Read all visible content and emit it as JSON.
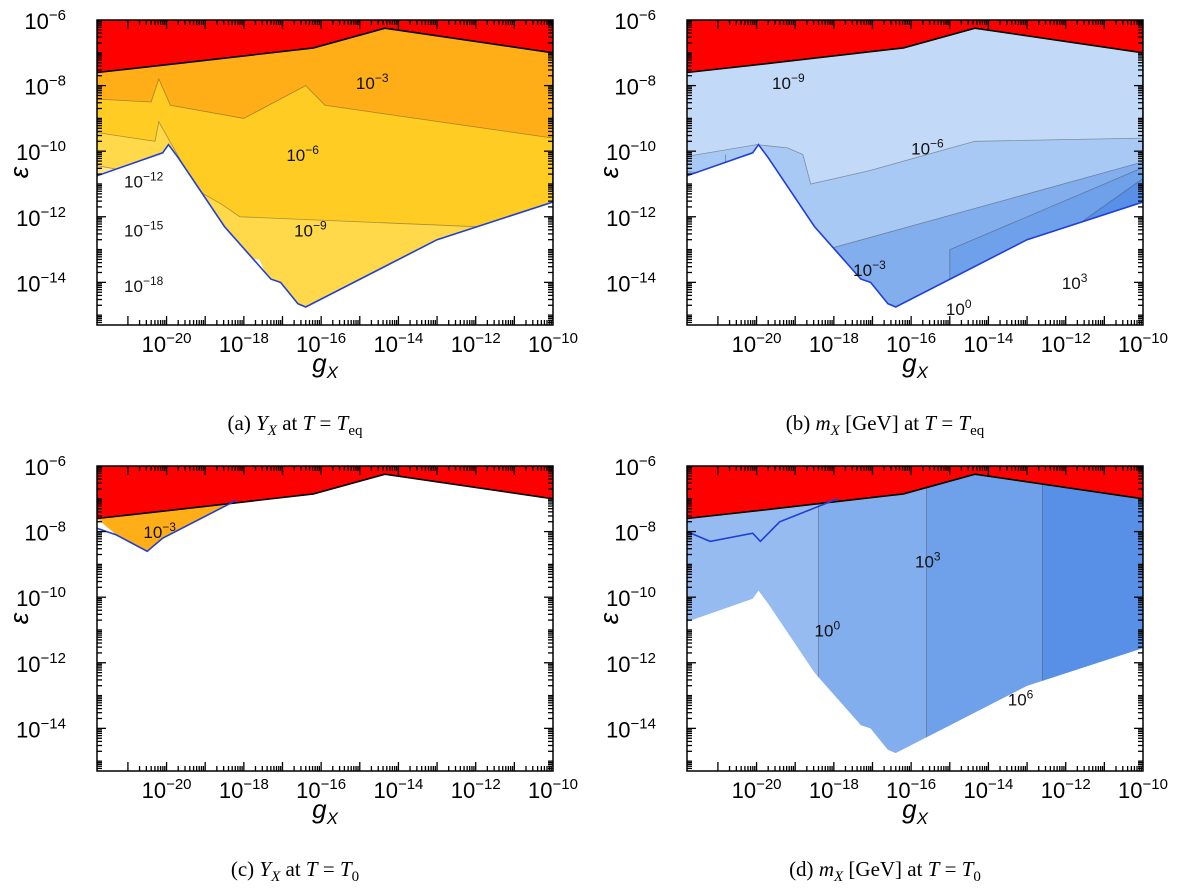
{
  "chart_data": [
    {
      "id": "a",
      "type": "contour",
      "xlabel": "g",
      "xlabel_sub": "X",
      "ylabel": "ε",
      "x_log_range": [
        -21.8,
        -10
      ],
      "y_log_range": [
        -15.3,
        -6
      ],
      "x_ticks": [
        -20,
        -18,
        -16,
        -14,
        -12,
        -10
      ],
      "y_ticks": [
        -6,
        -8,
        -10,
        -12,
        -14
      ],
      "caption": {
        "pre": "(a) ",
        "var": "Y",
        "var_sub": "X",
        "mid": " at ",
        "t": "T",
        "eq": " = ",
        "rhs": "T",
        "rhs_sub": "eq"
      },
      "palette": "orange",
      "contour_labels": [
        {
          "base": "10",
          "exp": "−3",
          "x": -15.1,
          "y": -8.1
        },
        {
          "base": "10",
          "exp": "−6",
          "x": -16.9,
          "y": -10.3
        },
        {
          "base": "10",
          "exp": "−9",
          "x": -16.7,
          "y": -12.6
        },
        {
          "base": "10",
          "exp": "−12",
          "x": -21.1,
          "y": -11.1
        },
        {
          "base": "10",
          "exp": "−15",
          "x": -21.1,
          "y": -12.6
        },
        {
          "base": "10",
          "exp": "−18",
          "x": -21.1,
          "y": -14.3
        }
      ]
    },
    {
      "id": "b",
      "type": "contour",
      "xlabel": "g",
      "xlabel_sub": "X",
      "ylabel": "ε",
      "x_log_range": [
        -21.8,
        -10
      ],
      "y_log_range": [
        -15.3,
        -6
      ],
      "x_ticks": [
        -20,
        -18,
        -16,
        -14,
        -12,
        -10
      ],
      "y_ticks": [
        -6,
        -8,
        -10,
        -12,
        -14
      ],
      "caption": {
        "pre": "(b) ",
        "var": "m",
        "var_sub": "X",
        "mid": " [GeV] at ",
        "t": "T",
        "eq": " = ",
        "rhs": "T",
        "rhs_sub": "eq"
      },
      "palette": "blue",
      "contour_labels": [
        {
          "base": "10",
          "exp": "−9",
          "x": -19.6,
          "y": -8.1
        },
        {
          "base": "10",
          "exp": "−6",
          "x": -16.0,
          "y": -10.1
        },
        {
          "base": "10",
          "exp": "−3",
          "x": -17.5,
          "y": -13.8
        },
        {
          "base": "10",
          "exp": "0",
          "x": -15.1,
          "y": -15.0
        },
        {
          "base": "10",
          "exp": "3",
          "x": -12.1,
          "y": -14.2
        }
      ]
    },
    {
      "id": "c",
      "type": "contour",
      "xlabel": "g",
      "xlabel_sub": "X",
      "ylabel": "ε",
      "x_log_range": [
        -21.8,
        -10
      ],
      "y_log_range": [
        -15.3,
        -6
      ],
      "x_ticks": [
        -20,
        -18,
        -16,
        -14,
        -12,
        -10
      ],
      "y_ticks": [
        -6,
        -8,
        -10,
        -12,
        -14
      ],
      "caption": {
        "pre": "(c) ",
        "var": "Y",
        "var_sub": "X",
        "mid": " at ",
        "t": "T",
        "eq": " = ",
        "rhs": "T",
        "rhs_sub": "0"
      },
      "palette": "orange",
      "contour_labels": [
        {
          "base": "10",
          "exp": "−3",
          "x": -20.6,
          "y": -8.2
        }
      ]
    },
    {
      "id": "d",
      "type": "contour",
      "xlabel": "g",
      "xlabel_sub": "X",
      "ylabel": "ε",
      "x_log_range": [
        -21.8,
        -10
      ],
      "y_log_range": [
        -15.3,
        -6
      ],
      "x_ticks": [
        -20,
        -18,
        -16,
        -14,
        -12,
        -10
      ],
      "y_ticks": [
        -6,
        -8,
        -10,
        -12,
        -14
      ],
      "caption": {
        "pre": "(d) ",
        "var": "m",
        "var_sub": "X",
        "mid": " [GeV] at ",
        "t": "T",
        "eq": " = ",
        "rhs": "T",
        "rhs_sub": "0"
      },
      "palette": "blue",
      "contour_labels": [
        {
          "base": "10",
          "exp": "3",
          "x": -15.9,
          "y": -9.1
        },
        {
          "base": "10",
          "exp": "0",
          "x": -18.5,
          "y": -11.2
        },
        {
          "base": "10",
          "exp": "6",
          "x": -13.5,
          "y": -13.3
        }
      ]
    }
  ],
  "colors": {
    "excluded_red": "#ff0000",
    "boundary_blue": "#1f3fd6",
    "orange_levels": [
      "#ffffd8",
      "#fff2b5",
      "#ffe68c",
      "#ffd94a",
      "#ffcc24",
      "#ffae17"
    ],
    "blue_levels": [
      "#c2daf7",
      "#a8c9f4",
      "#95bbf0",
      "#82aeee",
      "#6ea1ea",
      "#5790e6"
    ]
  }
}
